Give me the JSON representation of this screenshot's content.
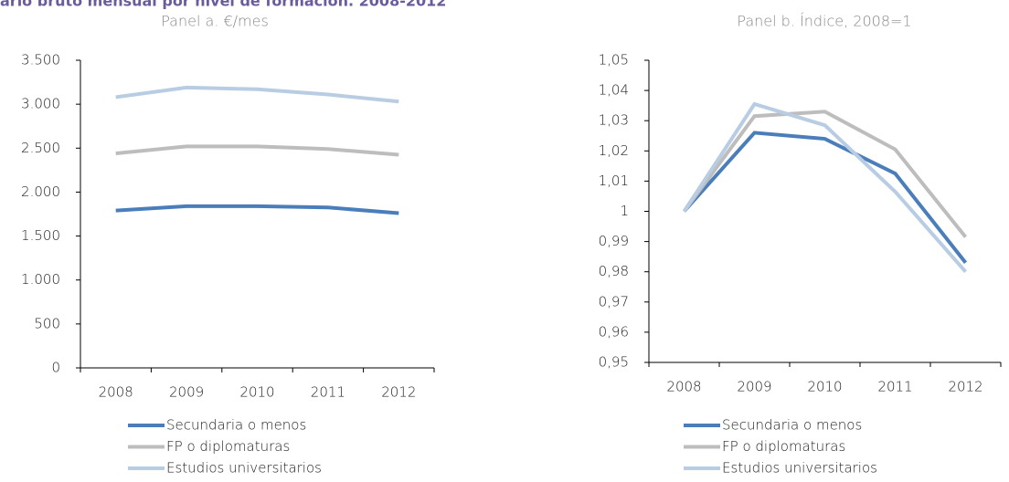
{
  "title": "ario bruto mensual por nivel de formación. 2008-2012",
  "chart_data": [
    {
      "type": "line",
      "subtitle": "Panel a. €/mes",
      "categories": [
        "2008",
        "2009",
        "2010",
        "2011",
        "2012"
      ],
      "ylim": [
        0,
        3500
      ],
      "yticks": [
        0,
        500,
        {
          "value": 1000,
          "label": "1.000"
        },
        {
          "value": 1500,
          "label": "1.500"
        },
        {
          "value": 2000,
          "label": "2.000"
        },
        {
          "value": 2500,
          "label": "2.500"
        },
        {
          "value": 3000,
          "label": "3.000"
        },
        {
          "value": 3500,
          "label": "3.500"
        }
      ],
      "series": [
        {
          "name": "Secundaria o menos",
          "color": "#4a7ebb",
          "values": [
            1790,
            1840,
            1840,
            1825,
            1760
          ]
        },
        {
          "name": "FP o diplomaturas",
          "color": "#bdbdbd",
          "values": [
            2440,
            2520,
            2520,
            2490,
            2425
          ]
        },
        {
          "name": "Estudios universitarios",
          "color": "#b8cce4",
          "values": [
            3080,
            3190,
            3170,
            3110,
            3030
          ]
        }
      ]
    },
    {
      "type": "line",
      "subtitle": "Panel b. Índice, 2008=1",
      "categories": [
        "2008",
        "2009",
        "2010",
        "2011",
        "2012"
      ],
      "ylim": [
        0.95,
        1.05
      ],
      "yticks": [
        {
          "value": 0.95,
          "label": "0,95"
        },
        {
          "value": 0.96,
          "label": "0,96"
        },
        {
          "value": 0.97,
          "label": "0,97"
        },
        {
          "value": 0.98,
          "label": "0,98"
        },
        {
          "value": 0.99,
          "label": "0,99"
        },
        1,
        {
          "value": 1.01,
          "label": "1,01"
        },
        {
          "value": 1.02,
          "label": "1,02"
        },
        {
          "value": 1.03,
          "label": "1,03"
        },
        {
          "value": 1.04,
          "label": "1,04"
        },
        {
          "value": 1.05,
          "label": "1,05"
        }
      ],
      "series": [
        {
          "name": "Secundaria o menos",
          "color": "#4a7ebb",
          "values": [
            1,
            1.026,
            1.024,
            1.0125,
            0.983
          ]
        },
        {
          "name": "FP o diplomaturas",
          "color": "#bdbdbd",
          "values": [
            1,
            1.0315,
            1.033,
            1.0205,
            0.9915
          ]
        },
        {
          "name": "Estudios universitarios",
          "color": "#b8cce4",
          "values": [
            1,
            1.0355,
            1.0285,
            1.0065,
            0.98
          ]
        }
      ]
    }
  ]
}
